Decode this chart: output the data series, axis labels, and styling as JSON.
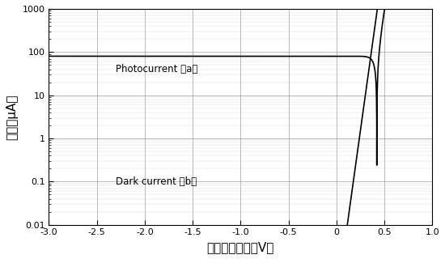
{
  "title": "",
  "xlabel": "バイアス電圧（V）",
  "ylabel": "電流（μA）",
  "xlim": [
    -3.0,
    1.0
  ],
  "ylim": [
    0.01,
    1000
  ],
  "xticks": [
    -3.0,
    -2.5,
    -2.0,
    -1.5,
    -1.0,
    -0.5,
    0.0,
    0.5,
    1.0
  ],
  "xtick_labels": [
    "-3.0",
    "-2.5",
    "-2.0",
    "-1.5",
    "-1.0",
    "-0.5",
    "0",
    "0.5",
    "1.0"
  ],
  "ytick_labels": [
    "0.01",
    "0.1",
    "1",
    "10",
    "100",
    "1000"
  ],
  "line_color": "#000000",
  "background_color": "#ffffff",
  "grid_color": "#888888",
  "label_a": "Photocurrent （a）",
  "label_b": "Dark current （b）",
  "photocurrent_flat": 80.0,
  "darkcurrent_flat": 0.15,
  "Iph": 80.0,
  "I0_photo": 0.0001,
  "n_photo": 1.2,
  "I0_dark": 0.00015,
  "n_dark": 1.05,
  "Vt": 0.02585
}
